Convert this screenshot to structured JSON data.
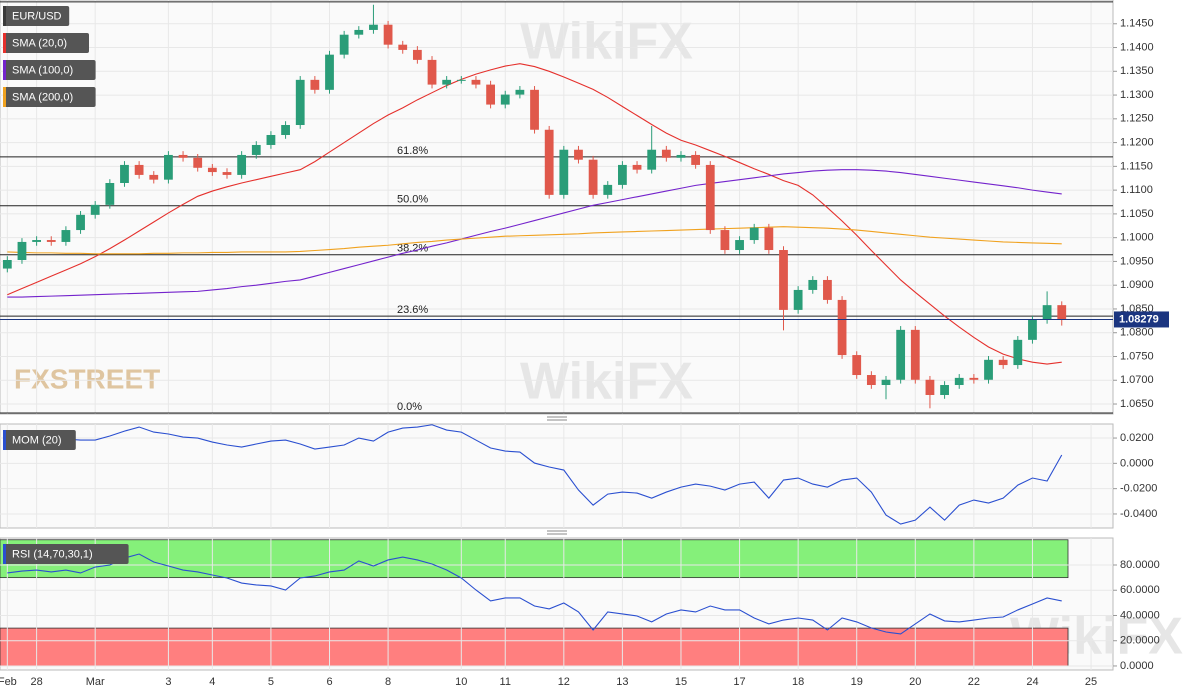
{
  "chart_data": [
    {
      "type": "candlestick",
      "name": "EUR/USD",
      "categories": [
        "Feb",
        null,
        "28",
        null,
        null,
        null,
        "Mar",
        null,
        null,
        null,
        null,
        "3",
        null,
        null,
        "4",
        null,
        null,
        null,
        "5",
        null,
        null,
        null,
        "6",
        null,
        null,
        null,
        "8",
        null,
        null,
        null,
        null,
        "10",
        null,
        null,
        "11",
        null,
        null,
        null,
        "12",
        null,
        null,
        null,
        "13",
        null,
        null,
        null,
        "15",
        null,
        null,
        null,
        "17",
        null,
        null,
        null,
        "18",
        null,
        null,
        null,
        "19",
        null,
        null,
        null,
        "20",
        null,
        null,
        null,
        "22",
        null,
        null,
        null,
        "24",
        null,
        null,
        null,
        "25",
        null
      ],
      "open": [
        1.0935,
        1.0953,
        1.0991,
        1.0995,
        1.0991,
        1.1016,
        1.1048,
        1.1069,
        1.1115,
        1.1153,
        1.1132,
        1.1122,
        1.1174,
        1.1168,
        1.1147,
        1.1138,
        1.1132,
        1.1174,
        1.1195,
        1.1216,
        1.1237,
        1.1332,
        1.1311,
        1.1385,
        1.1427,
        1.1437,
        1.1448,
        1.1406,
        1.1395,
        1.1374,
        1.1322,
        1.1332,
        1.1332,
        1.1322,
        1.128,
        1.1301,
        1.1311,
        1.1227,
        1.109,
        1.1185,
        1.1164,
        1.109,
        1.1111,
        1.1153,
        1.1143,
        1.1185,
        1.1168,
        1.1174,
        1.1153,
        1.1016,
        1.0974,
        1.0995,
        1.1021,
        1.0974,
        1.0848,
        1.089,
        1.0911,
        1.0869,
        1.0753,
        1.0711,
        1.069,
        1.0701,
        1.0806,
        1.0701,
        1.0669,
        1.069,
        1.0705,
        1.0701,
        1.0743,
        1.0732,
        1.0785,
        1.0827,
        1.0858,
        null,
        null,
        null
      ],
      "high": [
        1.0961,
        1.0999,
        1.1003,
        1.1003,
        1.1024,
        1.1056,
        1.1077,
        1.1123,
        1.1161,
        1.1161,
        1.114,
        1.1182,
        1.1182,
        1.1176,
        1.1155,
        1.1146,
        1.1182,
        1.1203,
        1.1224,
        1.1245,
        1.134,
        1.134,
        1.1393,
        1.1435,
        1.1445,
        1.149,
        1.1456,
        1.1414,
        1.1403,
        1.1382,
        1.134,
        1.134,
        1.134,
        1.133,
        1.1309,
        1.1319,
        1.1319,
        1.1235,
        1.1193,
        1.1193,
        1.1172,
        1.1119,
        1.1161,
        1.1161,
        1.1235,
        1.1193,
        1.1182,
        1.1182,
        1.1161,
        1.1024,
        1.1003,
        1.1029,
        1.1029,
        1.0982,
        1.0898,
        1.0919,
        1.0919,
        1.0877,
        1.0761,
        1.0719,
        1.0709,
        1.0814,
        1.0814,
        1.0709,
        1.0698,
        1.0713,
        1.0713,
        1.0751,
        1.0751,
        1.0793,
        1.0835,
        1.0887,
        1.0866,
        null,
        null,
        null
      ],
      "low": [
        1.0927,
        1.0945,
        1.0983,
        1.0983,
        1.0983,
        1.1008,
        1.104,
        1.1061,
        1.1107,
        1.1124,
        1.1114,
        1.1114,
        1.116,
        1.1139,
        1.113,
        1.1124,
        1.1124,
        1.1166,
        1.1187,
        1.1208,
        1.1229,
        1.1303,
        1.1303,
        1.1377,
        1.1419,
        1.1429,
        1.1398,
        1.1387,
        1.1366,
        1.1314,
        1.1314,
        1.1324,
        1.1314,
        1.1272,
        1.1272,
        1.1293,
        1.1219,
        1.1082,
        1.1082,
        1.1156,
        1.1082,
        1.1082,
        1.1103,
        1.1135,
        1.1135,
        1.116,
        1.116,
        1.1145,
        1.1008,
        1.0966,
        1.0966,
        1.0987,
        1.0966,
        1.0805,
        1.084,
        1.0882,
        1.0861,
        1.0745,
        1.0703,
        1.0682,
        1.066,
        1.0693,
        1.0693,
        1.0641,
        1.0661,
        1.0682,
        1.0693,
        1.0693,
        1.0724,
        1.0724,
        1.0777,
        1.0819,
        1.0815,
        null,
        null,
        null
      ],
      "close": [
        1.0953,
        1.0991,
        1.0995,
        1.0991,
        1.1016,
        1.1048,
        1.1069,
        1.1115,
        1.1153,
        1.1132,
        1.1122,
        1.1174,
        1.1168,
        1.1147,
        1.1138,
        1.1132,
        1.1174,
        1.1195,
        1.1216,
        1.1237,
        1.1332,
        1.1311,
        1.1385,
        1.1427,
        1.1437,
        1.1448,
        1.1406,
        1.1395,
        1.1374,
        1.1322,
        1.1332,
        1.1332,
        1.1322,
        1.128,
        1.1301,
        1.1311,
        1.1227,
        1.109,
        1.1185,
        1.1164,
        1.109,
        1.1111,
        1.1153,
        1.1143,
        1.1185,
        1.1168,
        1.1174,
        1.1153,
        1.1016,
        1.0974,
        1.0995,
        1.1021,
        1.0974,
        1.0848,
        1.089,
        1.0911,
        1.0869,
        1.0753,
        1.0711,
        1.069,
        1.0701,
        1.0806,
        1.0701,
        1.0669,
        1.069,
        1.0705,
        1.0701,
        1.0743,
        1.0732,
        1.0785,
        1.0827,
        1.0858,
        1.0828,
        null,
        null,
        null
      ],
      "up_color": "#2a9d78",
      "down_color": "#e0584b",
      "color": "#3a3a3a",
      "series": [
        {
          "name": "SMA (20,0)",
          "color": "#e5302c",
          "values": [
            1.088,
            1.0893,
            1.0906,
            1.0919,
            1.0932,
            1.0945,
            1.096,
            1.0977,
            1.0995,
            1.1014,
            1.1033,
            1.1052,
            1.107,
            1.1087,
            1.1098,
            1.1107,
            1.1115,
            1.1122,
            1.1129,
            1.1136,
            1.1143,
            1.116,
            1.118,
            1.12,
            1.122,
            1.124,
            1.1258,
            1.1273,
            1.129,
            1.1305,
            1.132,
            1.1333,
            1.1344,
            1.1353,
            1.1361,
            1.1366,
            1.136,
            1.135,
            1.1338,
            1.1325,
            1.1312,
            1.1295,
            1.1276,
            1.1257,
            1.1238,
            1.122,
            1.1205,
            1.1195,
            1.1183,
            1.1171,
            1.1158,
            1.1145,
            1.1133,
            1.112,
            1.111,
            1.109,
            1.1063,
            1.1035,
            1.1005,
            1.0973,
            1.0942,
            1.0911,
            1.0885,
            1.086,
            1.0835,
            1.0812,
            1.079,
            1.077,
            1.0755,
            1.0745,
            1.0738,
            1.0734,
            1.0738,
            null,
            null,
            null
          ]
        },
        {
          "name": "SMA (100,0)",
          "color": "#7423cc",
          "values": [
            1.0875,
            1.0875,
            1.0876,
            1.0877,
            1.0878,
            1.0879,
            1.088,
            1.0881,
            1.0882,
            1.0883,
            1.0884,
            1.0885,
            1.0886,
            1.0887,
            1.089,
            1.0893,
            1.0897,
            1.09,
            1.0904,
            1.0908,
            1.0911,
            1.0919,
            1.0927,
            1.0935,
            1.0943,
            1.0951,
            1.0959,
            1.0967,
            1.0974,
            1.0982,
            1.0989,
            1.0997,
            1.1005,
            1.1013,
            1.102,
            1.1028,
            1.1036,
            1.1044,
            1.1052,
            1.106,
            1.1068,
            1.1074,
            1.108,
            1.1086,
            1.1092,
            1.1098,
            1.1104,
            1.111,
            1.1114,
            1.1118,
            1.1122,
            1.1126,
            1.113,
            1.1134,
            1.1137,
            1.114,
            1.1142,
            1.1143,
            1.1143,
            1.1142,
            1.114,
            1.1137,
            1.1133,
            1.1129,
            1.1125,
            1.1121,
            1.1117,
            1.1113,
            1.1109,
            1.1105,
            1.11,
            1.1096,
            1.1092,
            null,
            null,
            null
          ]
        },
        {
          "name": "SMA (200,0)",
          "color": "#f0a21f",
          "values": [
            1.097,
            1.0969,
            1.0968,
            1.0968,
            1.0967,
            1.0967,
            1.0966,
            1.0966,
            1.0966,
            1.0966,
            1.0967,
            1.0967,
            1.0968,
            1.0968,
            1.0969,
            1.0969,
            1.097,
            1.097,
            1.097,
            1.097,
            1.0971,
            1.0973,
            1.0975,
            1.0977,
            1.098,
            1.0982,
            1.0984,
            1.0987,
            1.099,
            1.0992,
            1.0995,
            1.0997,
            1.0999,
            1.1001,
            1.1003,
            1.1004,
            1.1005,
            1.1006,
            1.1007,
            1.1008,
            1.101,
            1.1011,
            1.1012,
            1.1013,
            1.1014,
            1.1015,
            1.1016,
            1.1017,
            1.1018,
            1.1019,
            1.102,
            1.1021,
            1.1022,
            1.1023,
            1.1022,
            1.1021,
            1.102,
            1.1018,
            1.1016,
            1.1013,
            1.101,
            1.1007,
            1.1004,
            1.1001,
            1.0999,
            1.0997,
            1.0995,
            1.0993,
            1.0991,
            1.099,
            1.0989,
            1.0988,
            1.0987,
            null,
            null,
            null
          ]
        }
      ],
      "ylim": [
        1.0629,
        1.15
      ],
      "yticks": [
        {
          "value": 1.145,
          "label": "1.1450"
        },
        {
          "value": 1.14,
          "label": "1.1400"
        },
        {
          "value": 1.135,
          "label": "1.1350"
        },
        {
          "value": 1.13,
          "label": "1.1300"
        },
        {
          "value": 1.125,
          "label": "1.1250"
        },
        {
          "value": 1.12,
          "label": "1.1200"
        },
        {
          "value": 1.115,
          "label": "1.1150"
        },
        {
          "value": 1.11,
          "label": "1.1100"
        },
        {
          "value": 1.105,
          "label": "1.1050"
        },
        {
          "value": 1.1,
          "label": "1.1000"
        },
        {
          "value": 1.095,
          "label": "1.0950"
        },
        {
          "value": 1.09,
          "label": "1.0900"
        },
        {
          "value": 1.085,
          "label": "1.0850"
        },
        {
          "value": 1.08,
          "label": "1.0800"
        },
        {
          "value": 1.075,
          "label": "1.0750"
        },
        {
          "value": 1.07,
          "label": "1.0700"
        },
        {
          "value": 1.065,
          "label": "1.0650"
        }
      ],
      "levels": [
        {
          "label": "61.8%",
          "value": 1.117
        },
        {
          "label": "50.0%",
          "value": 1.1067
        },
        {
          "label": "38.2%",
          "value": 1.0964
        },
        {
          "label": "23.6%",
          "value": 1.0835
        },
        {
          "label": "0.0%",
          "value": 1.0631
        }
      ],
      "range_high": 1.1496,
      "last_price": {
        "value": 1.08279,
        "label": "1.08279"
      },
      "last_color": "#1b3580",
      "grid": true,
      "watermarks": [
        "WikiFX",
        "FXSTREET"
      ]
    },
    {
      "type": "line",
      "series": [
        {
          "name": "MOM (20)",
          "color": "#2a4fd0",
          "values": [
            0.0184,
            0.02,
            0.0208,
            0.0208,
            0.0192,
            0.0184,
            0.0184,
            0.0216,
            0.0255,
            0.0287,
            0.0247,
            0.0232,
            0.0208,
            0.02,
            0.0168,
            0.0145,
            0.0129,
            0.0153,
            0.0176,
            0.0184,
            0.0153,
            0.0113,
            0.0129,
            0.0145,
            0.02,
            0.0176,
            0.0247,
            0.0279,
            0.0287,
            0.0305,
            0.0263,
            0.0247,
            0.0184,
            0.0121,
            0.0097,
            0.0089,
            0.0002,
            -0.0029,
            -0.0053,
            -0.0211,
            -0.033,
            -0.0243,
            -0.0227,
            -0.0235,
            -0.0275,
            -0.0227,
            -0.0188,
            -0.0164,
            -0.018,
            -0.0211,
            -0.0164,
            -0.0148,
            -0.0275,
            -0.0132,
            -0.0116,
            -0.0164,
            -0.0188,
            -0.0132,
            -0.0116,
            -0.0227,
            -0.0409,
            -0.048,
            -0.0449,
            -0.0346,
            -0.0449,
            -0.033,
            -0.029,
            -0.0314,
            -0.0275,
            -0.0172,
            -0.0116,
            -0.014,
            0.0066
          ]
        }
      ],
      "ylim": [
        -0.0511,
        0.0311
      ],
      "yticks": [
        {
          "value": 0.02,
          "label": "0.0200"
        },
        {
          "value": 0,
          "label": "0.0000"
        },
        {
          "value": -0.02,
          "label": "-0.0200"
        },
        {
          "value": -0.04,
          "label": "-0.0400"
        }
      ],
      "grid": true
    },
    {
      "type": "line",
      "series": [
        {
          "name": "RSI (14,70,30,1)",
          "color": "#2a4fd0",
          "values": [
            73.7,
            75.2,
            76.0,
            74.5,
            76.0,
            73.7,
            78.4,
            80.0,
            85.5,
            88.7,
            82.4,
            79.2,
            76.0,
            74.5,
            72.1,
            69.7,
            65.7,
            64.2,
            63.4,
            60.2,
            69.7,
            71.3,
            74.5,
            76.0,
            83.2,
            79.2,
            84.0,
            86.3,
            84.0,
            80.8,
            76.0,
            69.7,
            60.2,
            51.5,
            53.9,
            53.9,
            47.5,
            45.2,
            49.9,
            42.8,
            28.5,
            42.8,
            41.2,
            39.6,
            34.9,
            41.2,
            44.4,
            42.8,
            47.5,
            44.4,
            44.4,
            38.0,
            33.3,
            36.4,
            38.0,
            36.4,
            28.5,
            38.0,
            34.9,
            30.1,
            26.9,
            25.4,
            33.3,
            41.2,
            35.7,
            34.9,
            36.4,
            38.0,
            38.8,
            44.4,
            49.1,
            53.9,
            51.5
          ]
        }
      ],
      "bands": [
        {
          "from": 70,
          "to": 100,
          "color": "#85f07a"
        },
        {
          "from": 0,
          "to": 30,
          "color": "#ff7f7f"
        }
      ],
      "ylim": [
        -3.2,
        101.4
      ],
      "yticks": [
        {
          "value": 80,
          "label": "80.0000"
        },
        {
          "value": 60,
          "label": "60.0000"
        },
        {
          "value": 40,
          "label": "40.0000"
        },
        {
          "value": 20,
          "label": "20.0000"
        },
        {
          "value": 0,
          "label": "0.0000"
        }
      ],
      "grid": true
    }
  ]
}
